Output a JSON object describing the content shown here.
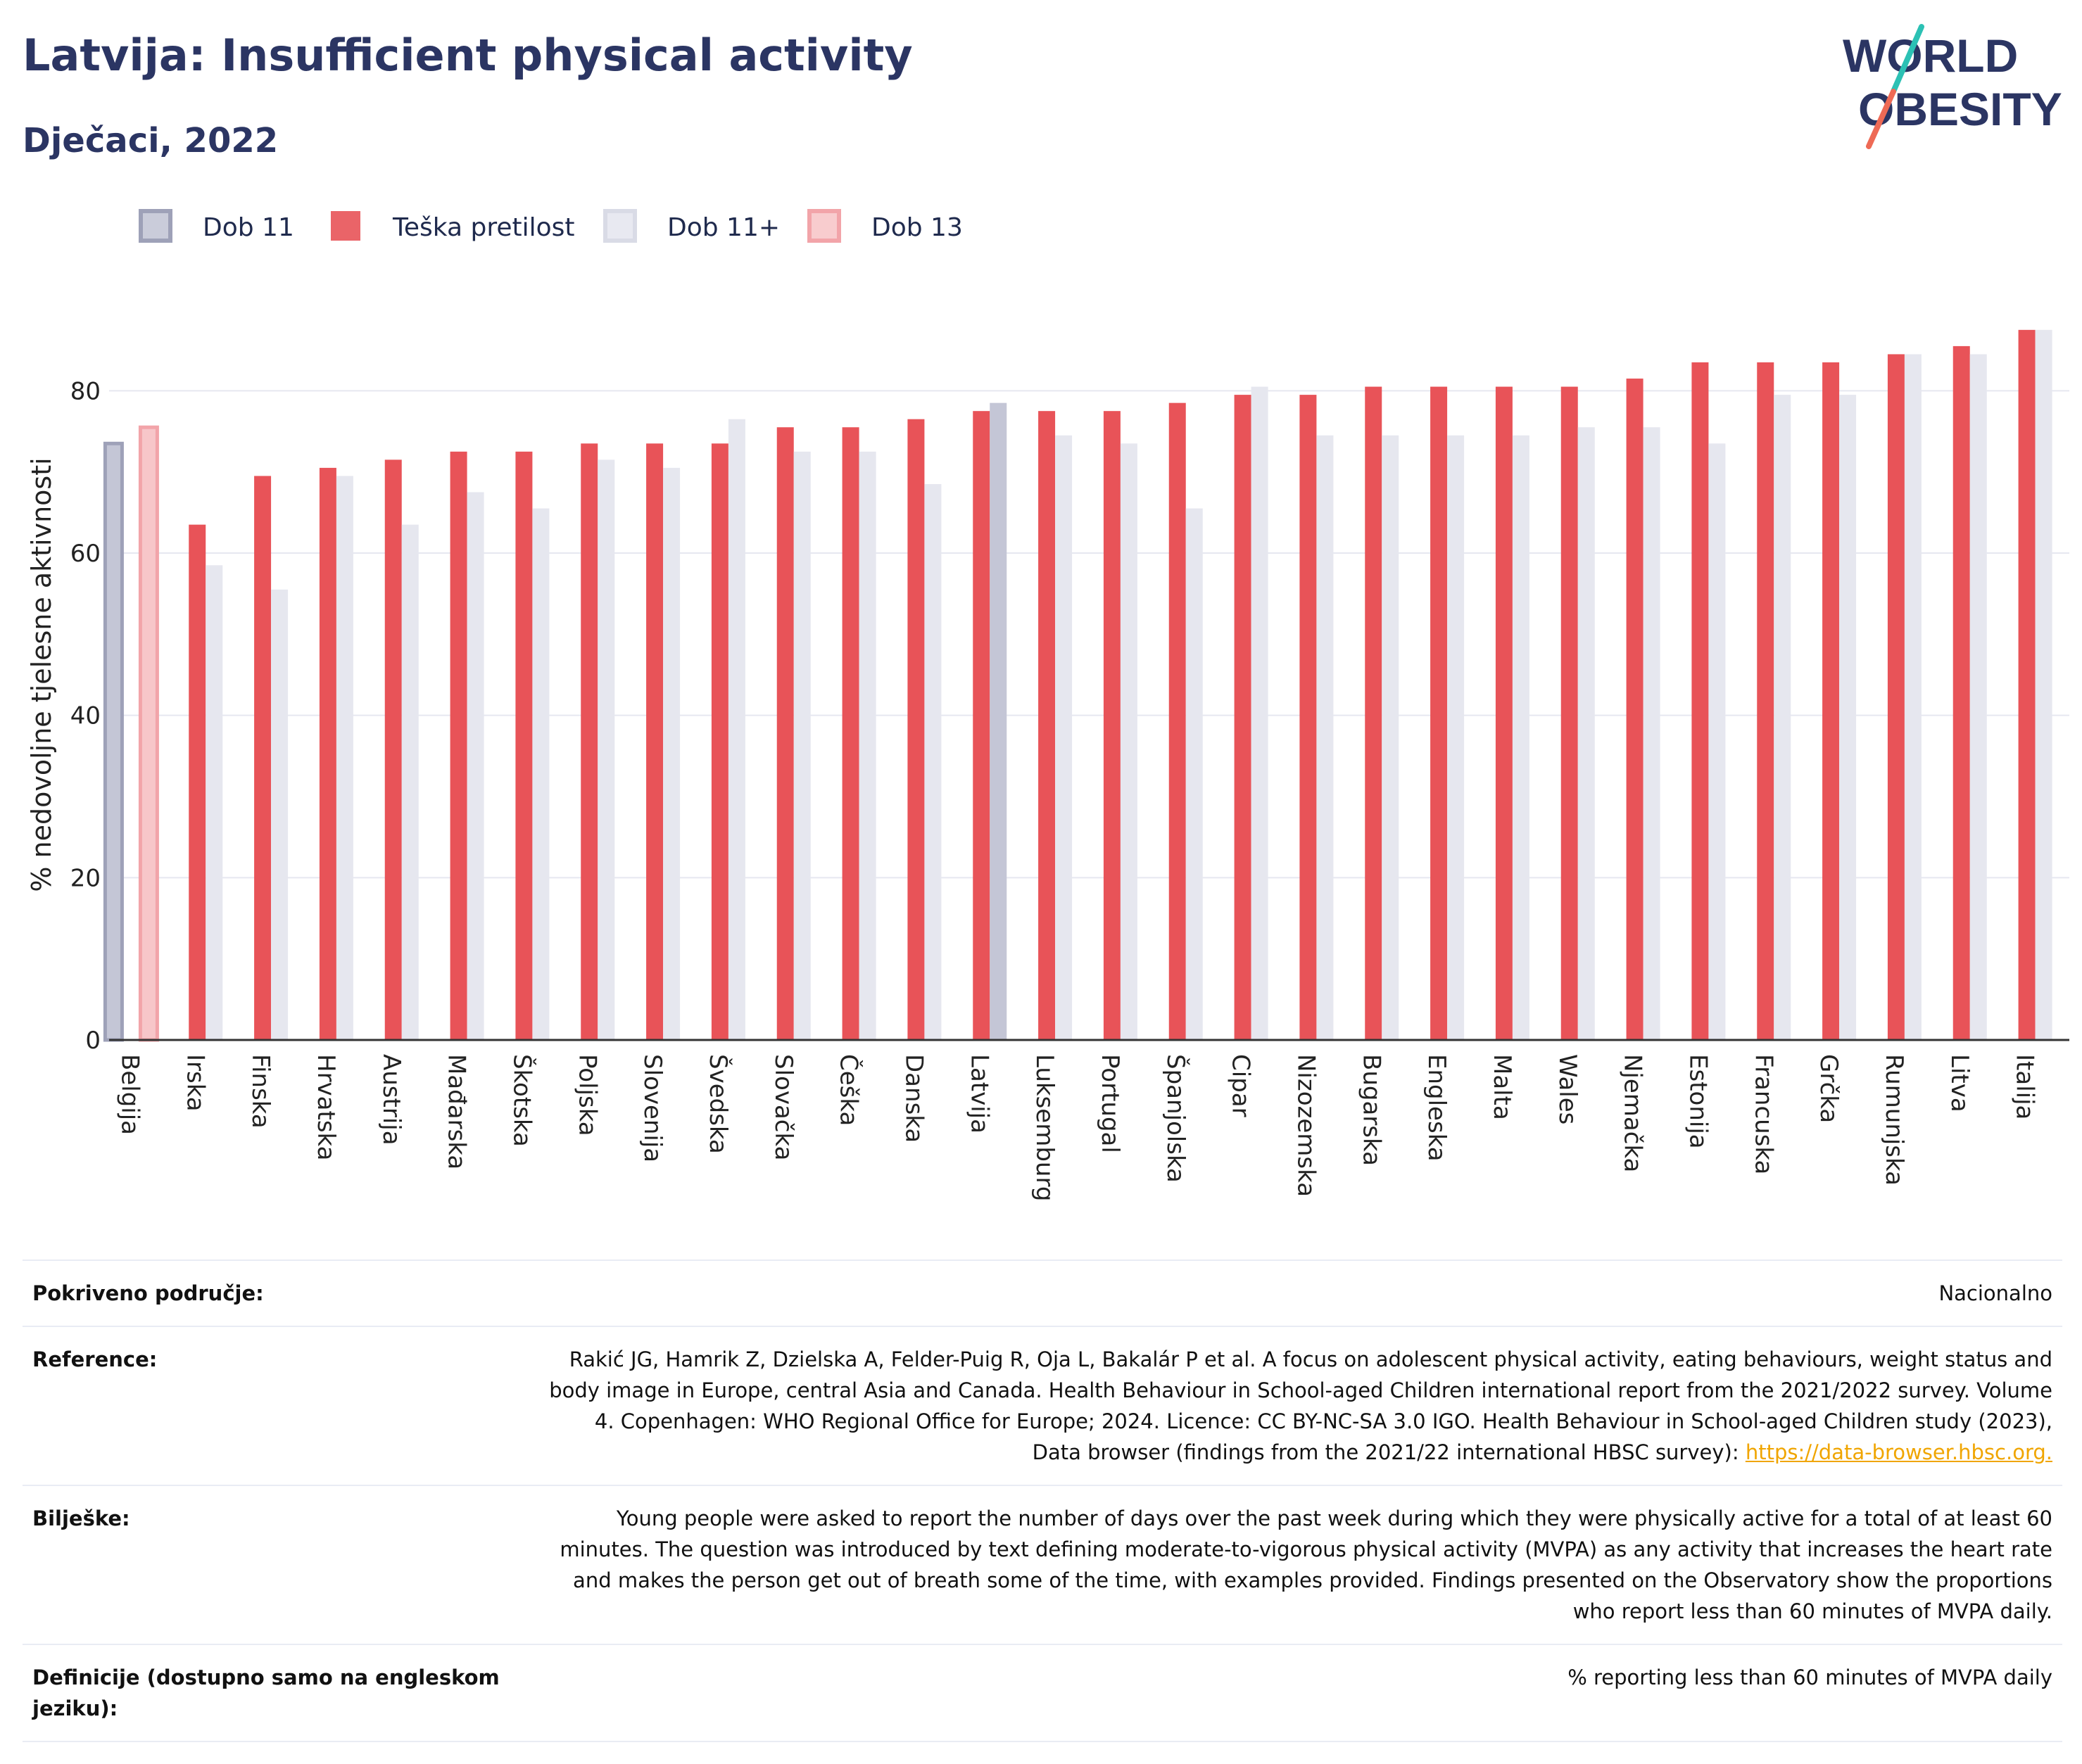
{
  "title": "Latvija: Insufficient physical activity",
  "subtitle": "Dječaci, 2022",
  "logo": {
    "line1": "WORLD",
    "line2": "OBESITY"
  },
  "colors": {
    "dob11": "#c4c6d6",
    "teska": "#e85358",
    "dob11plus": "#e6e7ef",
    "dob13": "#f7c6c9",
    "axis": "#333333",
    "grid": "#e6e8f0",
    "text": "#1f2a4d"
  },
  "chart_data": {
    "type": "bar",
    "ylabel": "% nedovoljne tjelesne aktivnosti",
    "ylim": [
      0,
      90
    ],
    "yticks": [
      0,
      20,
      40,
      60,
      80
    ],
    "legend": [
      {
        "key": "dob11",
        "label": "Dob 11"
      },
      {
        "key": "teska",
        "label": "Teška pretilost"
      },
      {
        "key": "dob11plus",
        "label": "Dob 11+"
      },
      {
        "key": "dob13",
        "label": "Dob 13"
      }
    ],
    "categories": [
      "Belgija",
      "Irska",
      "Finska",
      "Hrvatska",
      "Austrija",
      "Mađarska",
      "Škotska",
      "Poljska",
      "Slovenija",
      "Švedska",
      "Slovačka",
      "Češka",
      "Danska",
      "Latvija",
      "Luksemburg",
      "Portugal",
      "Španjolska",
      "Cipar",
      "Nizozemska",
      "Bugarska",
      "Engleska",
      "Malta",
      "Wales",
      "Njemačka",
      "Estonija",
      "Francuska",
      "Grčka",
      "Rumunjska",
      "Litva",
      "Italija"
    ],
    "series": [
      {
        "name": "Teška pretilost",
        "key": "teska",
        "values": [
          null,
          63.5,
          69.5,
          70.5,
          71.5,
          72.5,
          72.5,
          73.5,
          73.5,
          73.5,
          75.5,
          75.5,
          76.5,
          77.5,
          77.5,
          77.5,
          78.5,
          79.5,
          79.5,
          80.5,
          80.5,
          80.5,
          80.5,
          81.5,
          83.5,
          83.5,
          83.5,
          84.5,
          85.5,
          87.5
        ]
      },
      {
        "name": "Dob 11+",
        "key": "dob11plus",
        "values": [
          null,
          58.5,
          55.5,
          69.5,
          63.5,
          67.5,
          65.5,
          71.5,
          70.5,
          76.5,
          72.5,
          72.5,
          68.5,
          null,
          74.5,
          73.5,
          65.5,
          80.5,
          74.5,
          74.5,
          74.5,
          74.5,
          75.5,
          75.5,
          73.5,
          79.5,
          79.5,
          84.5,
          84.5,
          87.5
        ]
      },
      {
        "name": "Dob 11",
        "key": "dob11",
        "values": [
          73.5,
          null,
          null,
          null,
          null,
          null,
          null,
          null,
          null,
          null,
          null,
          null,
          null,
          78.5,
          null,
          null,
          null,
          null,
          null,
          null,
          null,
          null,
          null,
          null,
          null,
          null,
          null,
          null,
          null,
          null
        ]
      },
      {
        "name": "Dob 13",
        "key": "dob13",
        "values": [
          75.5,
          null,
          null,
          null,
          null,
          null,
          null,
          null,
          null,
          null,
          null,
          null,
          null,
          null,
          null,
          null,
          null,
          null,
          null,
          null,
          null,
          null,
          null,
          null,
          null,
          null,
          null,
          null,
          null,
          null
        ]
      }
    ]
  },
  "meta": {
    "coverage_label": "Pokriveno područje:",
    "coverage_value": "Nacionalno",
    "reference_label": "Reference:",
    "reference_value": "Rakić JG, Hamrik Z, Dzielska A, Felder-Puig R, Oja L, Bakalár P et al. A focus on adolescent physical activity, eating behaviours, weight status and body image in Europe, central Asia and Canada. Health Behaviour in School-aged Children international report from the 2021/2022 survey. Volume 4. Copenhagen: WHO Regional Office for Europe; 2024. Licence: CC BY-NC-SA 3.0 IGO. Health Behaviour in School-aged Children study (2023), Data browser (findings from the 2021/22 international HBSC survey): ",
    "reference_link": "https://data-browser.hbsc.org.",
    "notes_label": "Bilješke:",
    "notes_value": "Young people were asked to report the number of days over the past week during which they were physically active for a total of at least 60 minutes. The question was introduced by text defining moderate-to-vigorous physical activity (MVPA) as any activity that increases the heart rate and makes the person get out of breath some of the time, with examples provided. Findings presented on the Observatory show the proportions who report less than 60 minutes of MVPA daily.",
    "definitions_label": "Definicije (dostupno samo na engleskom jeziku):",
    "definitions_value": "% reporting less than 60 minutes of MVPA daily"
  }
}
